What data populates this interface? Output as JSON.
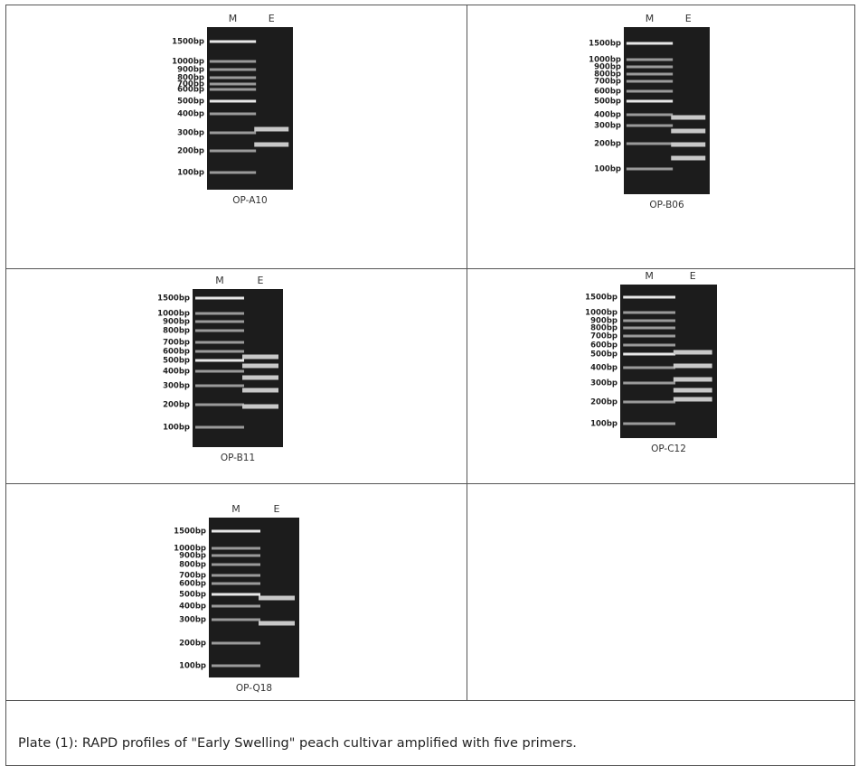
{
  "panels": [
    {
      "lanes": [
        "M",
        "E"
      ],
      "ladder": [
        "1500bp",
        "1000bp",
        "900bp",
        "800bp",
        "700bp",
        "600bp",
        "500bp",
        "400bp",
        "300bp",
        "200bp",
        "100bp"
      ],
      "name": "OP-A10"
    },
    {
      "lanes": [
        "M",
        "E"
      ],
      "ladder": [
        "1500bp",
        "1000bp",
        "900bp",
        "800bp",
        "700bp",
        "600bp",
        "500bp",
        "400bp",
        "300bp",
        "200bp",
        "100bp"
      ],
      "name": "OP-B06"
    },
    {
      "lanes": [
        "M",
        "E"
      ],
      "ladder": [
        "1500bp",
        "1000bp",
        "900bp",
        "800bp",
        "700bp",
        "600bp",
        "500bp",
        "400bp",
        "300bp",
        "200bp",
        "100bp"
      ],
      "name": "OP-B11"
    },
    {
      "lanes": [
        "M",
        "E"
      ],
      "ladder": [
        "1500bp",
        "1000bp",
        "900bp",
        "800bp",
        "700bp",
        "600bp",
        "500bp",
        "400bp",
        "300bp",
        "200bp",
        "100bp"
      ],
      "name": "OP-C12"
    },
    {
      "lanes": [
        "M",
        "E"
      ],
      "ladder": [
        "1500bp",
        "1000bp",
        "900bp",
        "800bp",
        "700bp",
        "600bp",
        "500bp",
        "400bp",
        "300bp",
        "200bp",
        "100bp"
      ],
      "name": "OP-Q18"
    }
  ],
  "caption": "Plate (1): RAPD profiles of \"Early Swelling\" peach cultivar amplified with five primers."
}
